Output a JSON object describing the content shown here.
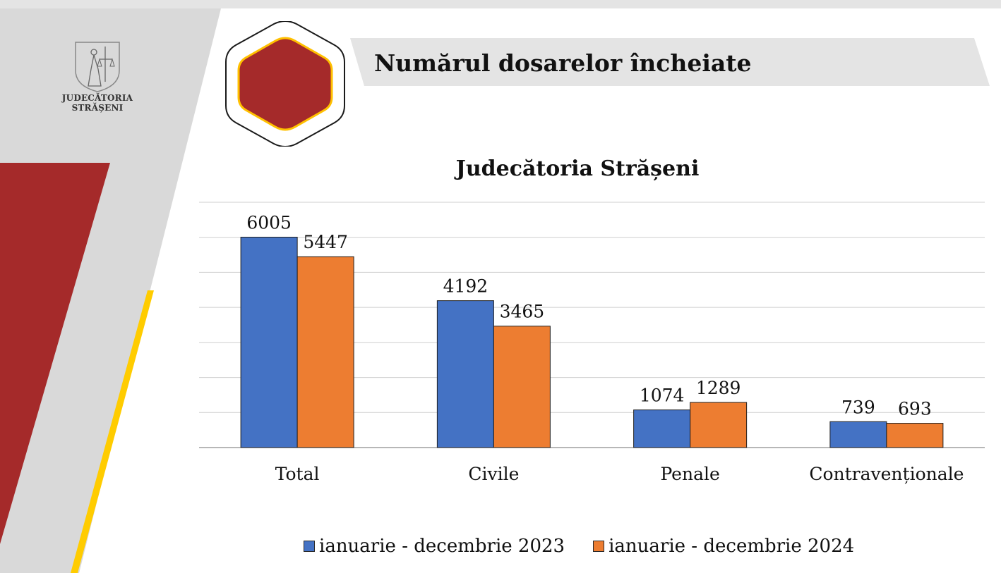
{
  "logo": {
    "line1": "JUDECĂTORIA",
    "line2": "STRĂȘENI"
  },
  "header": {
    "title": "Numărul dosarelor încheiate"
  },
  "colors": {
    "accent_red": "#a52a2a",
    "accent_yellow": "#ffcc00",
    "gray_panel": "#d9d9d9",
    "series_2023": "#4472c4",
    "series_2024": "#ed7d31"
  },
  "icons": {
    "logo": "scales-of-justice-icon",
    "hexagon": "hexagon-badge-icon"
  },
  "chart_data": {
    "type": "bar",
    "title": "Judecătoria Strășeni",
    "categories": [
      "Total",
      "Civile",
      "Penale",
      "Contravenționale"
    ],
    "series": [
      {
        "name": "ianuarie - decembrie 2023",
        "values": [
          6005,
          4192,
          1074,
          739
        ],
        "color": "#4472c4"
      },
      {
        "name": "ianuarie - decembrie 2024",
        "values": [
          5447,
          3465,
          1289,
          693
        ],
        "color": "#ed7d31"
      }
    ],
    "ylim": [
      0,
      7000
    ],
    "grid": true,
    "legend": "bottom"
  }
}
